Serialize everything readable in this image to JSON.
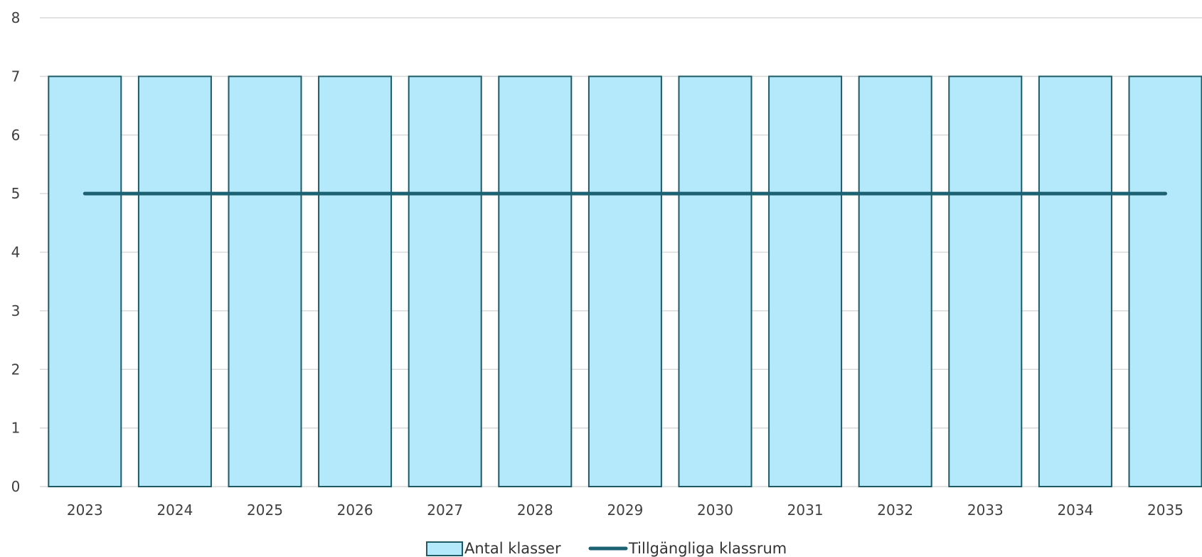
{
  "chart_data": {
    "type": "bar",
    "categories": [
      "2023",
      "2024",
      "2025",
      "2026",
      "2027",
      "2028",
      "2029",
      "2030",
      "2031",
      "2032",
      "2033",
      "2034",
      "2035"
    ],
    "series": [
      {
        "name": "Antal klasser",
        "kind": "bar",
        "values": [
          7,
          7,
          7,
          7,
          7,
          7,
          7,
          7,
          7,
          7,
          7,
          7,
          7
        ]
      },
      {
        "name": "Tillgängliga klassrum",
        "kind": "line",
        "values": [
          5,
          5,
          5,
          5,
          5,
          5,
          5,
          5,
          5,
          5,
          5,
          5,
          5
        ]
      }
    ],
    "yticks": [
      "0",
      "1",
      "2",
      "3",
      "4",
      "5",
      "6",
      "7",
      "8"
    ],
    "ylim": [
      0,
      8
    ],
    "grid": true,
    "legend": "bottom-center",
    "colors": {
      "bar_fill": "#b3e9fb",
      "bar_stroke": "#1e5a66",
      "line": "#1c6272",
      "grid": "#d9d9d9"
    }
  }
}
